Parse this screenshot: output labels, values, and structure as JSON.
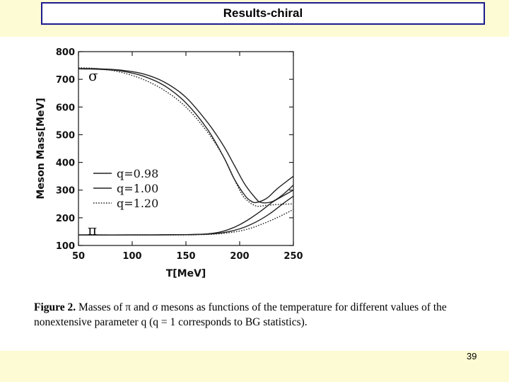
{
  "slide": {
    "title": "Results-chiral",
    "page_number": "39"
  },
  "caption": {
    "figure_label": "Figure 2.",
    "text": "Masses of π and σ mesons as functions of the temperature for different values of the nonextensive parameter q (q = 1 corresponds to BG statistics)."
  },
  "chart_data": {
    "type": "line",
    "title": "",
    "xlabel": "T[MeV]",
    "ylabel": "Meson Mass[MeV]",
    "xlim": [
      50,
      250
    ],
    "ylim": [
      100,
      800
    ],
    "xticks": [
      "50",
      "100",
      "150",
      "200",
      "250"
    ],
    "yticks": [
      "100",
      "200",
      "300",
      "400",
      "500",
      "600",
      "700",
      "800"
    ],
    "grid": false,
    "legend_position": "left-middle",
    "annotations": [
      "σ",
      "π"
    ],
    "series": [
      {
        "name": "q=0.98",
        "style": "solid",
        "meson": "σ",
        "x": [
          50,
          70,
          90,
          110,
          130,
          150,
          170,
          185,
          195,
          205,
          210,
          215,
          225,
          235,
          250
        ],
        "y": [
          738,
          736,
          730,
          712,
          677,
          615,
          520,
          420,
          340,
          280,
          262,
          255,
          270,
          305,
          350
        ]
      },
      {
        "name": "q=1.00",
        "style": "solid",
        "meson": "σ",
        "x": [
          50,
          70,
          90,
          110,
          130,
          150,
          170,
          185,
          195,
          205,
          215,
          220,
          230,
          240,
          250
        ],
        "y": [
          739,
          738,
          733,
          720,
          690,
          635,
          545,
          460,
          390,
          320,
          270,
          255,
          258,
          283,
          318
        ]
      },
      {
        "name": "q=1.20",
        "style": "dotted",
        "meson": "σ",
        "x": [
          50,
          70,
          90,
          110,
          130,
          150,
          170,
          185,
          195,
          200,
          205,
          215,
          225,
          235,
          250
        ],
        "y": [
          742,
          738,
          725,
          700,
          660,
          600,
          510,
          420,
          340,
          300,
          270,
          243,
          245,
          248,
          250
        ]
      },
      {
        "name": "q=0.98",
        "style": "solid",
        "meson": "π",
        "x": [
          50,
          100,
          150,
          170,
          180,
          190,
          200,
          210,
          220,
          230,
          240,
          250
        ],
        "y": [
          138,
          138,
          139,
          142,
          147,
          158,
          175,
          198,
          225,
          255,
          278,
          300
        ]
      },
      {
        "name": "q=1.00",
        "style": "solid",
        "meson": "π",
        "x": [
          50,
          100,
          150,
          170,
          180,
          190,
          200,
          210,
          220,
          230,
          240,
          250
        ],
        "y": [
          138,
          138,
          139,
          141,
          144,
          150,
          160,
          175,
          195,
          220,
          250,
          278
        ]
      },
      {
        "name": "q=1.20",
        "style": "dotted",
        "meson": "π",
        "x": [
          50,
          100,
          150,
          170,
          180,
          190,
          200,
          210,
          220,
          230,
          240,
          250
        ],
        "y": [
          138,
          138,
          138,
          140,
          142,
          146,
          152,
          162,
          176,
          192,
          210,
          230
        ]
      }
    ]
  }
}
